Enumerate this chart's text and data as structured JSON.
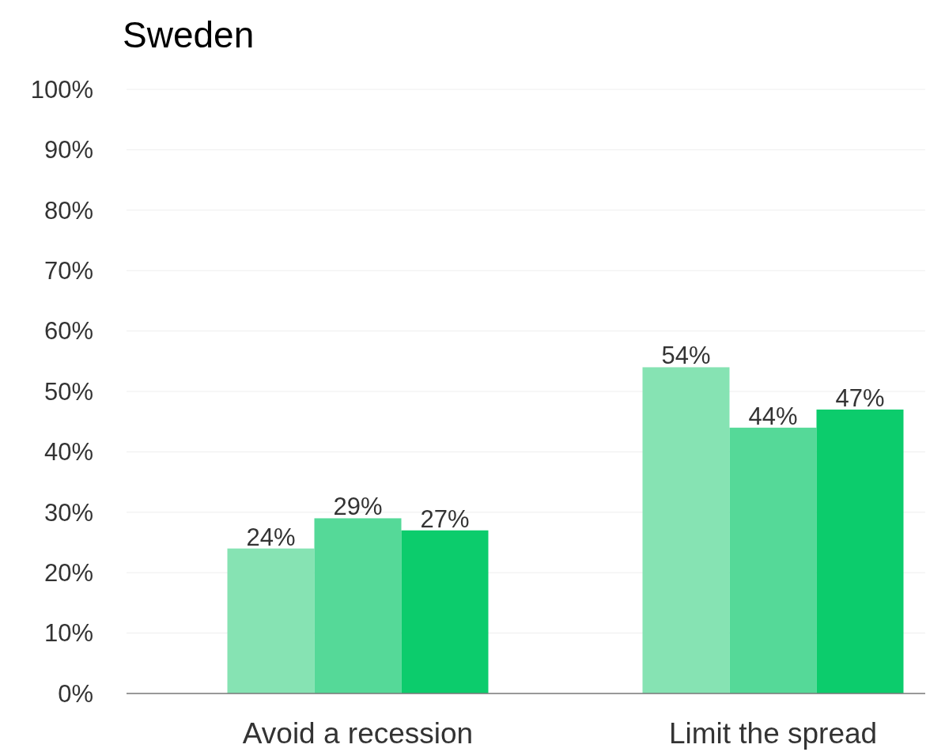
{
  "chart_data": {
    "type": "bar",
    "title": "Sweden",
    "categories": [
      "Avoid a recession",
      "Limit the spread"
    ],
    "series": [
      {
        "color": "#86e3b3",
        "values": [
          24,
          54
        ]
      },
      {
        "color": "#55d998",
        "values": [
          29,
          44
        ]
      },
      {
        "color": "#0ccc6c",
        "values": [
          27,
          47
        ]
      }
    ],
    "ylim": [
      0,
      100
    ],
    "yticks": [
      {
        "value": 0,
        "label": "0%"
      },
      {
        "value": 10,
        "label": "10%"
      },
      {
        "value": 20,
        "label": "20%"
      },
      {
        "value": 30,
        "label": "30%"
      },
      {
        "value": 40,
        "label": "40%"
      },
      {
        "value": 50,
        "label": "50%"
      },
      {
        "value": 60,
        "label": "60%"
      },
      {
        "value": 70,
        "label": "70%"
      },
      {
        "value": 80,
        "label": "80%"
      },
      {
        "value": 90,
        "label": "90%"
      },
      {
        "value": 100,
        "label": "100%"
      }
    ],
    "grid": "y",
    "value_labels": [
      [
        "24%",
        "54%"
      ],
      [
        "29%",
        "44%"
      ],
      [
        "27%",
        "47%"
      ]
    ]
  }
}
